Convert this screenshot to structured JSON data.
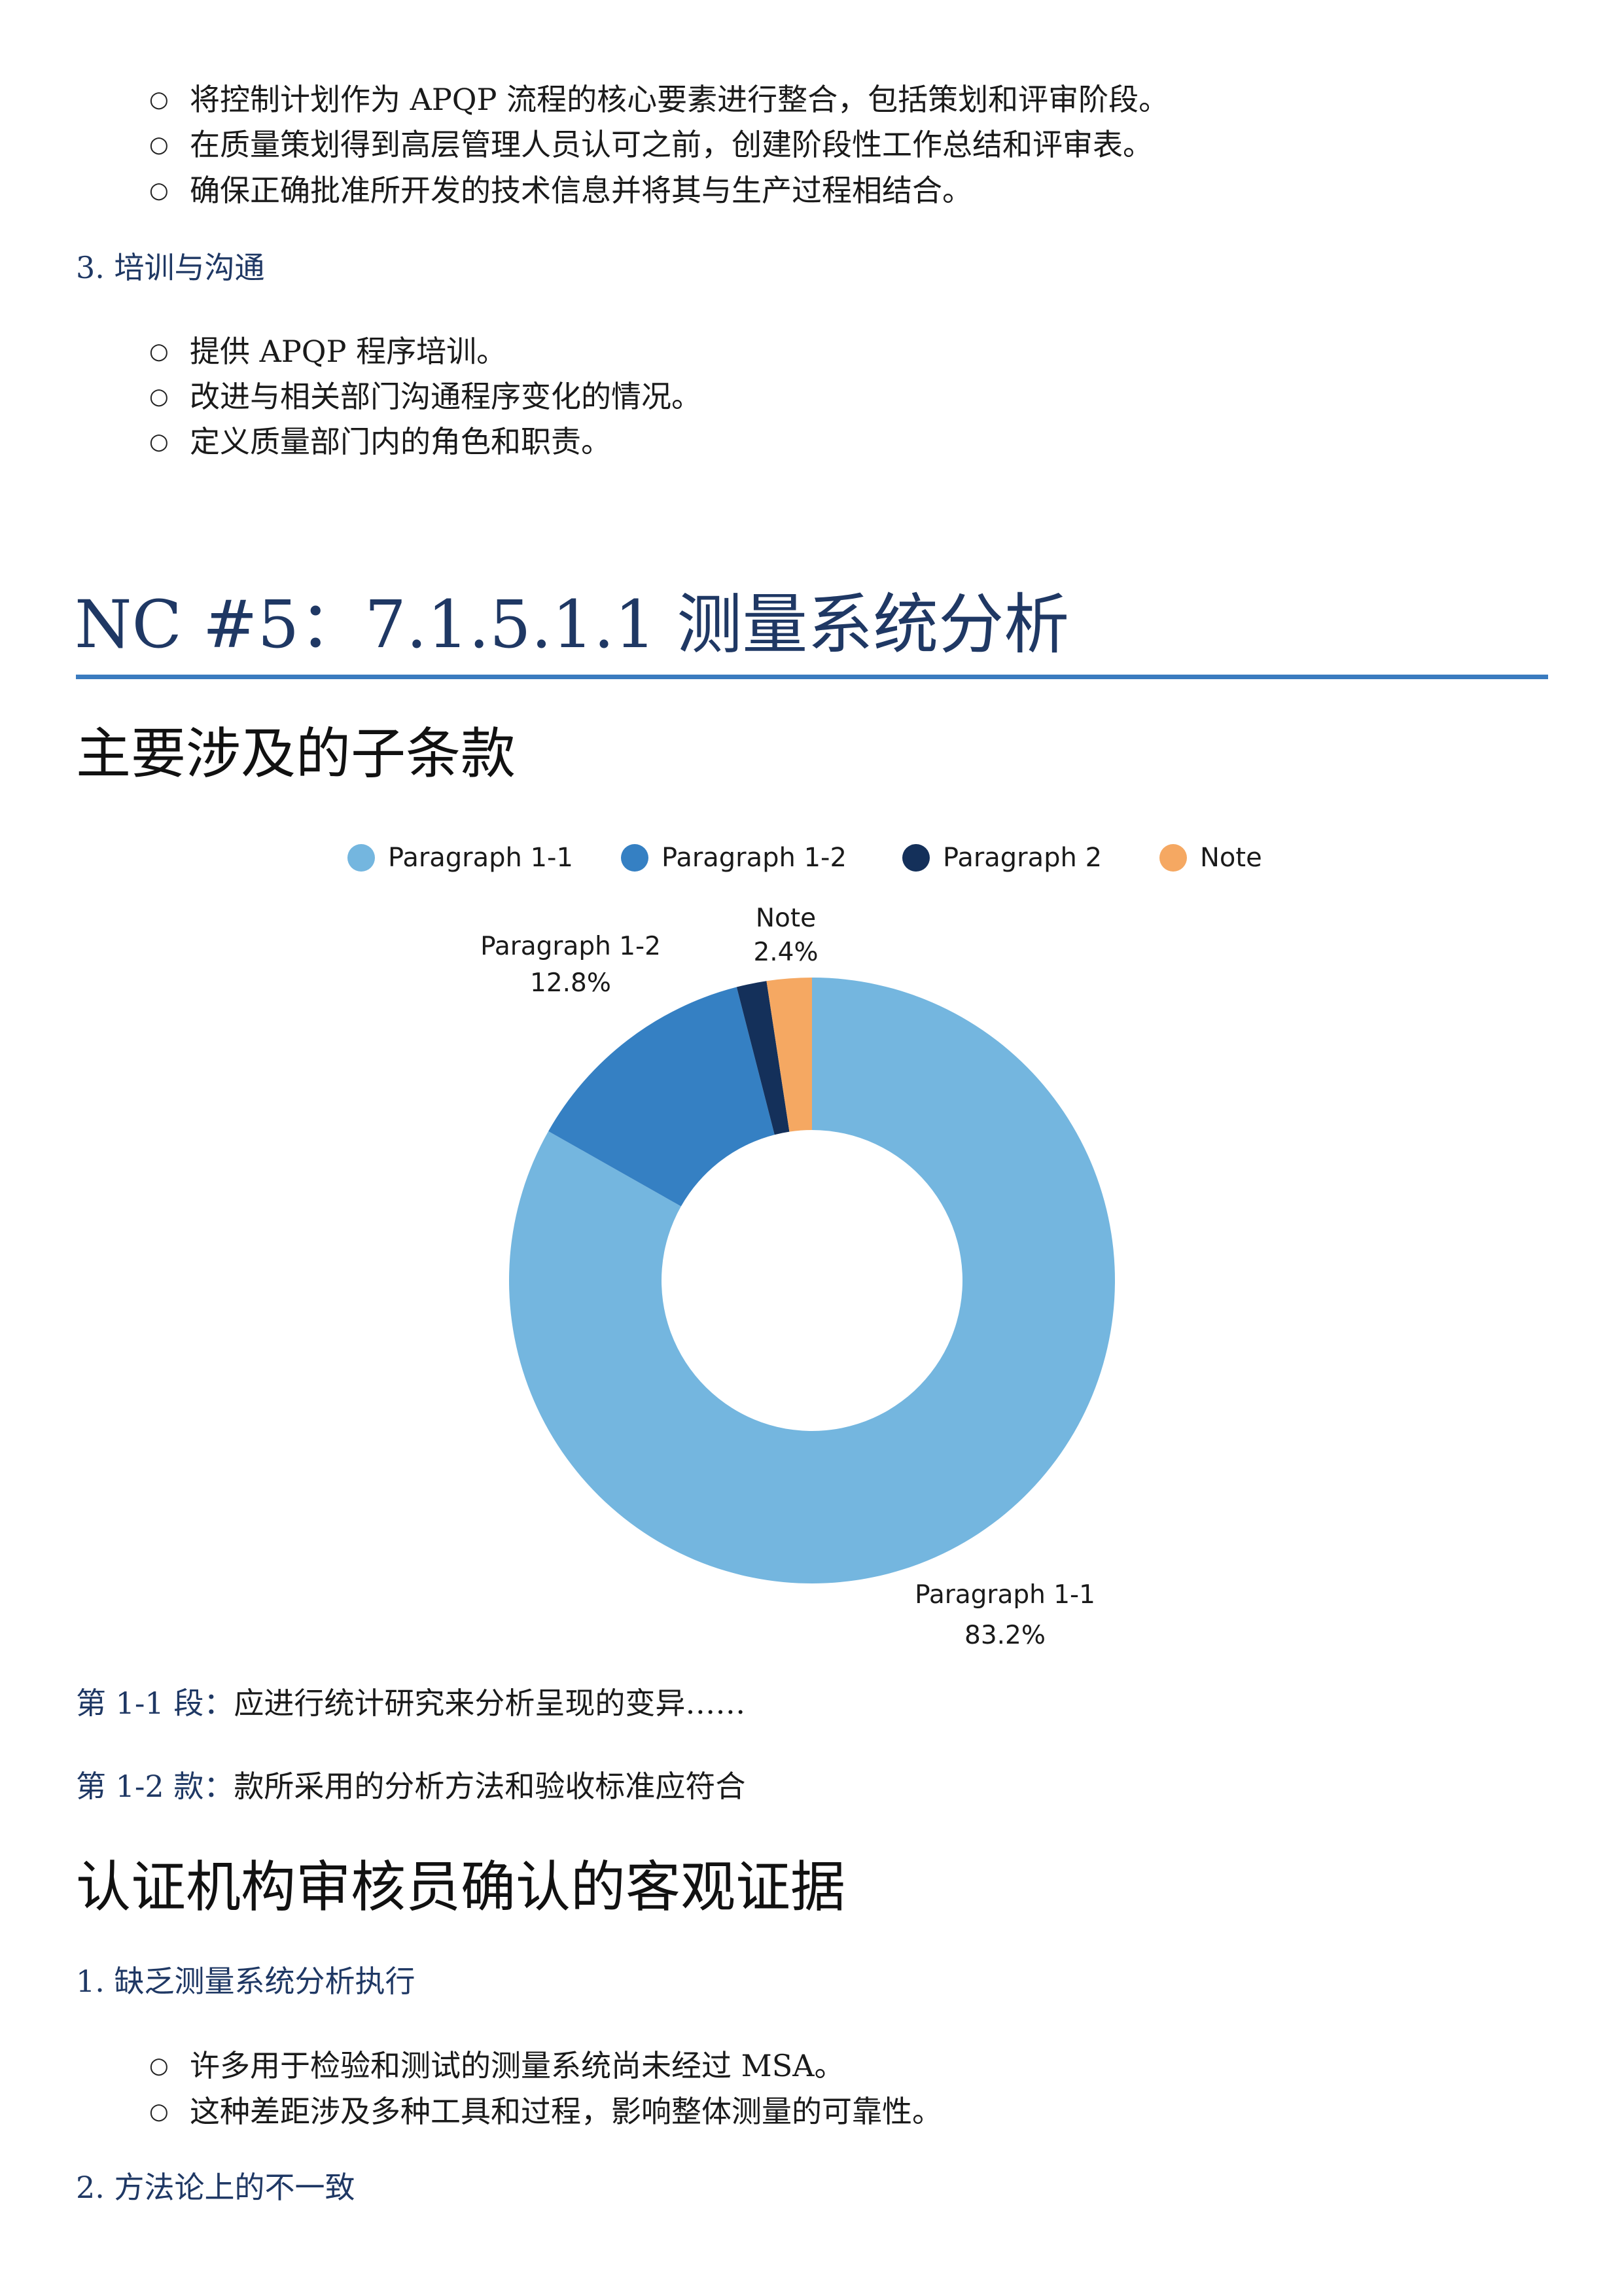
{
  "section_prev": {
    "bullets_a": [
      "将控制计划作为 APQP 流程的核心要素进行整合，包括策划和评审阶段。",
      "在质量策划得到高层管理人员认可之前，创建阶段性工作总结和评审表。",
      "确保正确批准所开发的技术信息并将其与生产过程相结合。"
    ],
    "heading_3": "3. 培训与沟通",
    "bullets_b": [
      "提供 APQP 程序培训。",
      "改进与相关部门沟通程序变化的情况。",
      "定义质量部门内的角色和职责。"
    ]
  },
  "nc5": {
    "title": "NC #5：7.1.5.1.1 测量系统分析",
    "sub_heading": "主要涉及的子条款",
    "para_1_1": {
      "label": "第 1-1 段：",
      "text": "应进行统计研究来分析呈现的变异……"
    },
    "para_1_2": {
      "label": "第 1-2 款：",
      "text": "款所采用的分析方法和验收标准应符合"
    },
    "evidence_heading": "认证机构审核员确认的客观证据",
    "item_1": "1. 缺乏测量系统分析执行",
    "item_1_bullets": [
      "许多用于检验和测试的测量系统尚未经过 MSA。",
      "这种差距涉及多种工具和过程，影响整体测量的可靠性。"
    ],
    "item_2": "2. 方法论上的不一致"
  },
  "chart_data": {
    "type": "pie",
    "donut": true,
    "legend_position": "top",
    "categories": [
      "Paragraph 1-1",
      "Paragraph 1-2",
      "Paragraph 2",
      "Note"
    ],
    "values": [
      83.2,
      12.8,
      1.6,
      2.4
    ],
    "colors": [
      "#74b6df",
      "#3580c3",
      "#14305a",
      "#f5a862"
    ],
    "data_labels": [
      {
        "name": "Paragraph 1-1",
        "value": "83.2%"
      },
      {
        "name": "Paragraph 1-2",
        "value": "12.8%"
      },
      {
        "name": "Note",
        "value": "2.4%"
      }
    ]
  }
}
